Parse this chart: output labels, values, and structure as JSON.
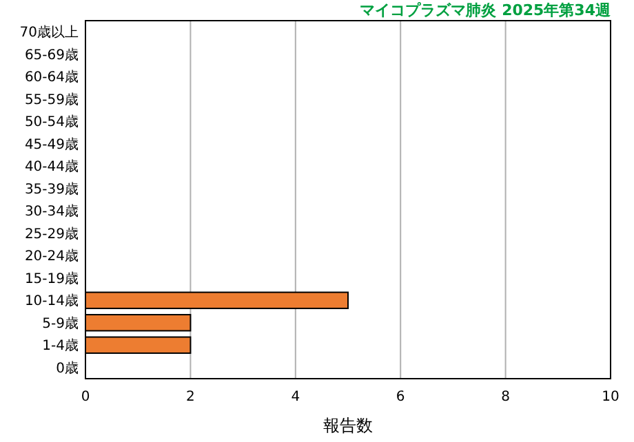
{
  "chart_data": {
    "type": "bar",
    "orientation": "horizontal",
    "title": "マイコプラズマ肺炎 2025年第34週",
    "xlabel": "報告数",
    "categories": [
      "70歳以上",
      "65-69歳",
      "60-64歳",
      "55-59歳",
      "50-54歳",
      "45-49歳",
      "40-44歳",
      "35-39歳",
      "30-34歳",
      "25-29歳",
      "20-24歳",
      "15-19歳",
      "10-14歳",
      "5-9歳",
      "1-4歳",
      "0歳"
    ],
    "values": [
      0,
      0,
      0,
      0,
      0,
      0,
      0,
      0,
      0,
      0,
      0,
      0,
      5,
      2,
      2,
      0
    ],
    "color": "#ed7d31",
    "xlim": [
      0,
      10
    ],
    "xticks": [
      0,
      2,
      4,
      6,
      8,
      10
    ],
    "grid": "x"
  }
}
